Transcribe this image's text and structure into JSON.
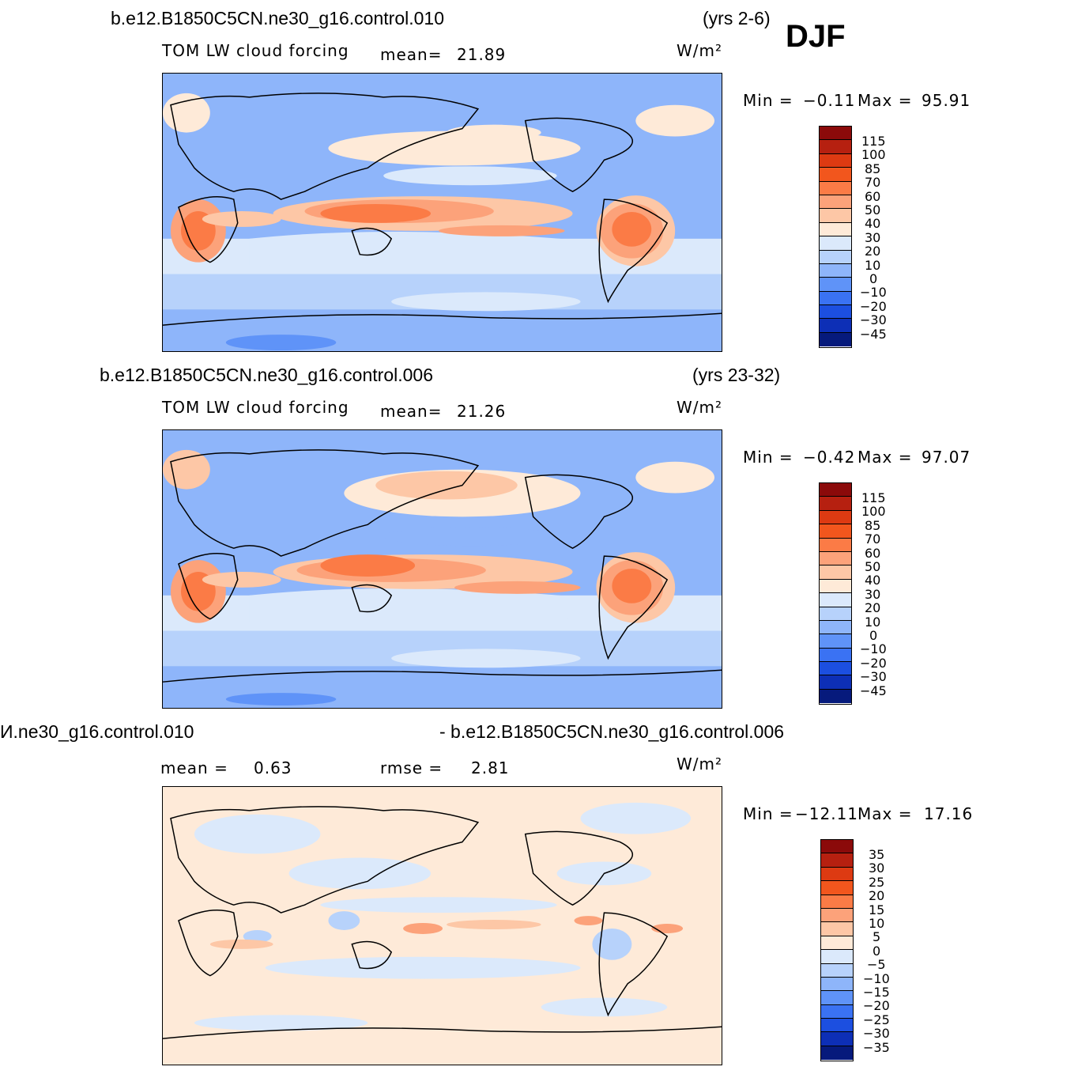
{
  "header": {
    "season": "DJF"
  },
  "panels": [
    {
      "case_name": "b.e12.B1850C5CN.ne30_g16.control.010",
      "years": "(yrs 2-6)",
      "variable": "TOM LW cloud forcing",
      "stat1_label": "mean=",
      "stat1_value": "21.89",
      "units": "W/m²",
      "min_label": "Min =",
      "min_value": "−0.11",
      "max_label": "Max =",
      "max_value": "95.91",
      "levels": [
        "115",
        "100",
        "85",
        "70",
        "60",
        "50",
        "40",
        "30",
        "20",
        "10",
        "0",
        "−10",
        "−20",
        "−30",
        "−45"
      ],
      "colors": [
        "#8b0a0a",
        "#b62010",
        "#dd3a12",
        "#f2561d",
        "#fb7b46",
        "#fca27a",
        "#fdc7a6",
        "#feead8",
        "#dbe9fb",
        "#b7d2fb",
        "#8eb5fa",
        "#5f93f8",
        "#3a72f3",
        "#1c4fe0",
        "#0d2fb6",
        "#061a7c"
      ]
    },
    {
      "case_name": "b.e12.B1850C5CN.ne30_g16.control.006",
      "years": "(yrs 23-32)",
      "variable": "TOM LW cloud forcing",
      "stat1_label": "mean=",
      "stat1_value": "21.26",
      "units": "W/m²",
      "min_label": "Min =",
      "min_value": "−0.42",
      "max_label": "Max =",
      "max_value": "97.07",
      "levels": [
        "115",
        "100",
        "85",
        "70",
        "60",
        "50",
        "40",
        "30",
        "20",
        "10",
        "0",
        "−10",
        "−20",
        "−30",
        "−45"
      ],
      "colors": [
        "#8b0a0a",
        "#b62010",
        "#dd3a12",
        "#f2561d",
        "#fb7b46",
        "#fca27a",
        "#fdc7a6",
        "#feead8",
        "#dbe9fb",
        "#b7d2fb",
        "#8eb5fa",
        "#5f93f8",
        "#3a72f3",
        "#1c4fe0",
        "#0d2fb6",
        "#061a7c"
      ]
    },
    {
      "case_left": "И.ne30_g16.control.010",
      "case_right": "- b.e12.B1850C5CN.ne30_g16.control.006",
      "stat1_label": "mean =",
      "stat1_value": "0.63",
      "stat2_label": "rmse =",
      "stat2_value": "2.81",
      "units": "W/m²",
      "min_label": "Min =",
      "min_value": "−12.11",
      "max_label": "Max =",
      "max_value": "17.16",
      "levels": [
        "35",
        "30",
        "25",
        "20",
        "15",
        "10",
        "5",
        "0",
        "−5",
        "−10",
        "−15",
        "−20",
        "−25",
        "−30",
        "−35"
      ],
      "colors": [
        "#8b0a0a",
        "#b62010",
        "#dd3a12",
        "#f2561d",
        "#fb7b46",
        "#fca27a",
        "#fdc7a6",
        "#feead8",
        "#dbe9fb",
        "#b7d2fb",
        "#8eb5fa",
        "#5f93f8",
        "#3a72f3",
        "#1c4fe0",
        "#0d2fb6",
        "#061a7c"
      ]
    }
  ]
}
